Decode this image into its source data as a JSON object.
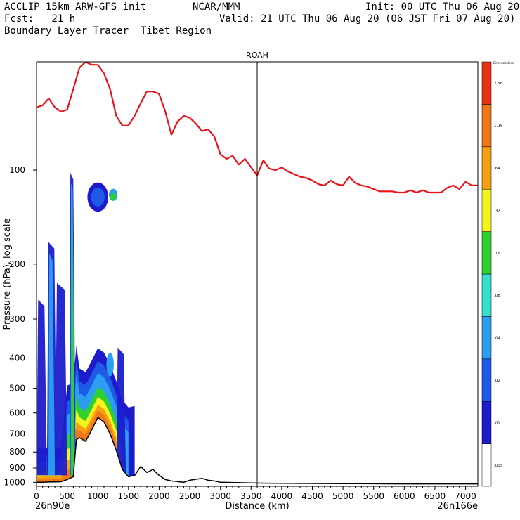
{
  "header": {
    "line1_left": "ACCLIP 15km ARW-GFS init",
    "line1_mid": "NCAR/MMM",
    "line1_right": "Init: 00 UTC Thu 06 Aug 20",
    "line2_left": "Fcst:   21 h",
    "line2_right": "Valid: 21 UTC Thu 06 Aug 20 (06 JST Fri 07 Aug 20)",
    "line3_left": "Boundary Layer Tracer  Tibet Region"
  },
  "chart_data": {
    "type": "cross-section",
    "title": "ROAH",
    "xlabel": "Distance (km)",
    "ylabel": "Pressure (hPa), log scale",
    "x_start_label": "26n90e",
    "x_end_label": "26n166e",
    "xlim": [
      0,
      7200
    ],
    "ylim_hpa": [
      1030,
      45
    ],
    "x_ticks": [
      0,
      500,
      1000,
      1500,
      2000,
      2500,
      3000,
      3500,
      4000,
      4500,
      5000,
      5500,
      6000,
      6500,
      7000
    ],
    "y_ticks": [
      100,
      200,
      300,
      400,
      500,
      600,
      700,
      800,
      900,
      1000
    ],
    "marker_x_km": 3600,
    "tropopause": {
      "color": "#e8141a",
      "x": [
        0,
        100,
        200,
        300,
        400,
        500,
        600,
        700,
        800,
        900,
        1000,
        1100,
        1200,
        1300,
        1400,
        1500,
        1600,
        1700,
        1800,
        1900,
        2000,
        2100,
        2200,
        2300,
        2400,
        2500,
        2600,
        2700,
        2800,
        2900,
        3000,
        3100,
        3200,
        3300,
        3400,
        3500,
        3600,
        3700,
        3800,
        3900,
        4000,
        4100,
        4200,
        4300,
        4400,
        4500,
        4600,
        4700,
        4800,
        4900,
        5000,
        5100,
        5200,
        5300,
        5400,
        5500,
        5600,
        5700,
        5800,
        5900,
        6000,
        6100,
        6200,
        6300,
        6400,
        6500,
        6600,
        6700,
        6800,
        6900,
        7000,
        7100,
        7200
      ],
      "p": [
        63,
        62,
        59,
        63,
        65,
        64,
        55,
        47,
        45,
        46,
        46,
        49,
        55,
        67,
        72,
        72,
        67,
        61,
        56,
        56,
        57,
        65,
        77,
        70,
        67,
        68,
        71,
        75,
        74,
        78,
        89,
        92,
        90,
        96,
        92,
        98,
        104,
        93,
        99,
        100,
        98,
        101,
        103,
        105,
        106,
        108,
        111,
        112,
        108,
        111,
        112,
        105,
        110,
        112,
        113,
        115,
        117,
        117,
        117,
        118,
        118,
        116,
        118,
        116,
        118,
        118,
        118,
        114,
        112,
        115,
        109,
        112,
        112
      ]
    },
    "terrain": {
      "color": "#000000",
      "x": [
        0,
        100,
        200,
        300,
        400,
        500,
        600,
        650,
        700,
        800,
        900,
        1000,
        1100,
        1200,
        1300,
        1400,
        1500,
        1600,
        1700,
        1800,
        1900,
        2000,
        2100,
        2200,
        2300,
        2400,
        2500,
        2600,
        2700,
        2800,
        2900,
        3000,
        3500,
        4000,
        5000,
        6000,
        7000,
        7200
      ],
      "p": [
        1000,
        1000,
        998,
        997,
        996,
        980,
        960,
        730,
        720,
        740,
        680,
        620,
        640,
        700,
        790,
        910,
        960,
        950,
        890,
        930,
        910,
        950,
        980,
        990,
        995,
        1000,
        985,
        978,
        972,
        985,
        990,
        1000,
        1005,
        1008,
        1010,
        1012,
        1012,
        1012
      ]
    },
    "colorbar": {
      "label": "Dimensionless",
      "levels": [
        ".005",
        ".01",
        ".02",
        ".04",
        ".08",
        ".16",
        ".32",
        ".64",
        "1.28",
        "2.56"
      ],
      "colors": [
        "#ffffff",
        "#1c1ccc",
        "#1f5ae6",
        "#2b9ef2",
        "#36e0cc",
        "#2ed02e",
        "#f5f51e",
        "#f5a014",
        "#f07814",
        "#e83214"
      ]
    },
    "tracer_field": {
      "description": "Boundary layer tracer plume near x=0-1600 km",
      "blobs": [
        {
          "x": 1000,
          "p": 122,
          "rx": 170,
          "level": ".01"
        },
        {
          "x": 1000,
          "p": 122,
          "rx": 110,
          "level": ".02"
        },
        {
          "x": 1250,
          "p": 120,
          "rx": 70,
          "level": ".04"
        },
        {
          "x": 1250,
          "p": 122,
          "rx": 45,
          "level": ".16"
        },
        {
          "x": 1200,
          "p": 420,
          "rx": 60,
          "level": ".04"
        }
      ]
    }
  }
}
